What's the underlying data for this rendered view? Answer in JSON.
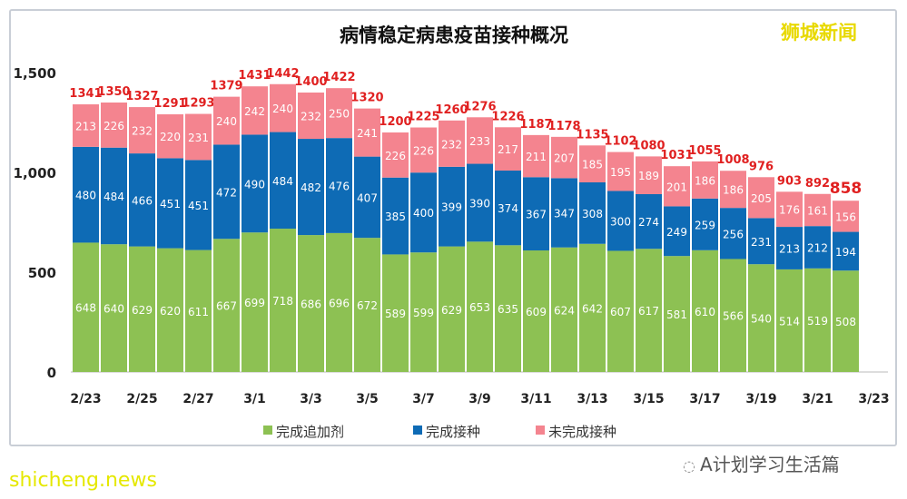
{
  "chart_data": {
    "type": "bar",
    "stacked": true,
    "title": "病情稳定病患疫苗接种概况",
    "categories": [
      "2/23",
      "2/24",
      "2/25",
      "2/26",
      "2/27",
      "2/28",
      "3/1",
      "3/2",
      "3/3",
      "3/4",
      "3/5",
      "3/6",
      "3/7",
      "3/8",
      "3/9",
      "3/10",
      "3/11",
      "3/12",
      "3/13",
      "3/14",
      "3/15",
      "3/16",
      "3/17",
      "3/18",
      "3/19",
      "3/20",
      "3/21",
      "3/22"
    ],
    "x_tick_labels": [
      "2/23",
      "2/25",
      "2/27",
      "3/1",
      "3/3",
      "3/5",
      "3/7",
      "3/9",
      "3/11",
      "3/13",
      "3/15",
      "3/17",
      "3/19",
      "3/21",
      "3/23"
    ],
    "y_tick_labels": [
      "0",
      "500",
      "1,000",
      "1,500"
    ],
    "ylim": [
      0,
      1500
    ],
    "grid": false,
    "legend_position": "bottom",
    "series": [
      {
        "name": "完成追加剂",
        "color": "#8dc153",
        "values": [
          648,
          640,
          629,
          620,
          611,
          667,
          699,
          718,
          686,
          696,
          672,
          589,
          599,
          629,
          653,
          635,
          609,
          624,
          642,
          607,
          617,
          581,
          610,
          566,
          540,
          514,
          519,
          508
        ]
      },
      {
        "name": "完成接种",
        "color": "#0e6bb5",
        "values": [
          480,
          484,
          466,
          451,
          451,
          472,
          490,
          484,
          482,
          476,
          407,
          385,
          400,
          399,
          390,
          374,
          367,
          347,
          308,
          300,
          274,
          249,
          259,
          256,
          231,
          213,
          212,
          194
        ]
      },
      {
        "name": "未完成接种",
        "color": "#f4848f",
        "values": [
          213,
          226,
          232,
          220,
          231,
          240,
          242,
          240,
          232,
          250,
          241,
          226,
          226,
          232,
          233,
          217,
          211,
          207,
          185,
          195,
          189,
          201,
          186,
          186,
          205,
          176,
          161,
          156
        ]
      }
    ],
    "totals": [
      1341,
      1350,
      1327,
      1291,
      1293,
      1379,
      1431,
      1442,
      1400,
      1422,
      1320,
      1200,
      1225,
      1260,
      1276,
      1226,
      1187,
      1178,
      1135,
      1102,
      1080,
      1031,
      1055,
      1008,
      976,
      903,
      892,
      858
    ],
    "total_label_color": "#e02020"
  },
  "watermarks": {
    "top_right": "狮城新闻",
    "bottom_left": "shicheng.news",
    "bottom_right": "A计划学习生活篇"
  }
}
